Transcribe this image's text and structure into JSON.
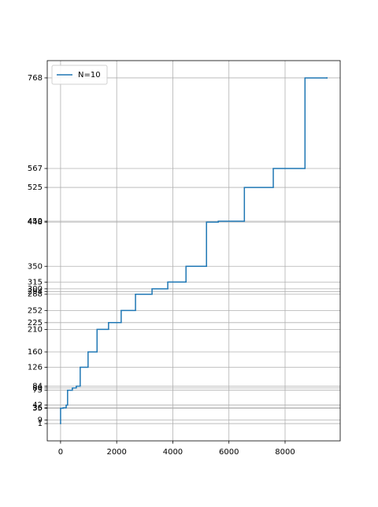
{
  "chart_data": {
    "type": "step",
    "legend_loc": "upper left",
    "grid": true,
    "x": [
      0,
      0,
      90,
      200,
      250,
      420,
      560,
      700,
      980,
      1300,
      1710,
      2160,
      2670,
      3260,
      3820,
      4470,
      5200,
      5620,
      6550,
      7580,
      8710,
      9490
    ],
    "series": [
      {
        "name": "N=10",
        "color": "#1f77b4",
        "values": [
          1,
          35,
          36,
          42,
          75,
          80,
          84,
          126,
          160,
          210,
          225,
          252,
          288,
          300,
          315,
          350,
          448,
          450,
          525,
          567,
          768,
          768
        ]
      }
    ],
    "xlim": [
      -474.5,
      9964.5
    ],
    "xticks": [
      0,
      2000,
      4000,
      6000,
      8000
    ],
    "ylim": [
      -37.35,
      806.35
    ],
    "yticks": [
      1,
      9,
      35,
      36,
      42,
      75,
      80,
      84,
      126,
      160,
      210,
      225,
      252,
      288,
      294,
      300,
      315,
      350,
      448,
      450,
      525,
      567,
      768
    ]
  }
}
